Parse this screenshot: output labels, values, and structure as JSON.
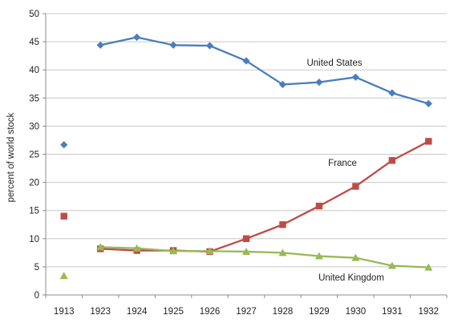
{
  "chart_data": {
    "type": "line",
    "title": "",
    "xlabel": "",
    "ylabel": "percent of world stock",
    "ylim": [
      0,
      50
    ],
    "y_ticks": [
      0,
      5,
      10,
      15,
      20,
      25,
      30,
      35,
      40,
      45,
      50
    ],
    "categories": [
      "1913",
      "1923",
      "1924",
      "1925",
      "1926",
      "1927",
      "1928",
      "1929",
      "1930",
      "1931",
      "1932"
    ],
    "grid": "horizontal",
    "legend": "none (series labels placed inside the plot)",
    "series": [
      {
        "name": "United States",
        "color": "#4a7ebb",
        "marker": "diamond",
        "values": [
          26.7,
          44.4,
          45.8,
          44.4,
          44.3,
          41.6,
          37.4,
          37.8,
          38.7,
          35.9,
          34.0
        ],
        "connected_from_index": 1
      },
      {
        "name": "France",
        "color": "#be4b48",
        "marker": "square",
        "values": [
          14.0,
          8.2,
          7.9,
          7.9,
          7.7,
          10.0,
          12.5,
          15.8,
          19.3,
          23.9,
          27.3
        ],
        "connected_from_index": 1
      },
      {
        "name": "United Kingdom",
        "color": "#98b954",
        "marker": "triangle",
        "values": [
          3.4,
          8.5,
          8.3,
          7.8,
          7.8,
          7.7,
          7.5,
          6.9,
          6.6,
          5.2,
          4.9
        ],
        "connected_from_index": 1
      }
    ]
  }
}
